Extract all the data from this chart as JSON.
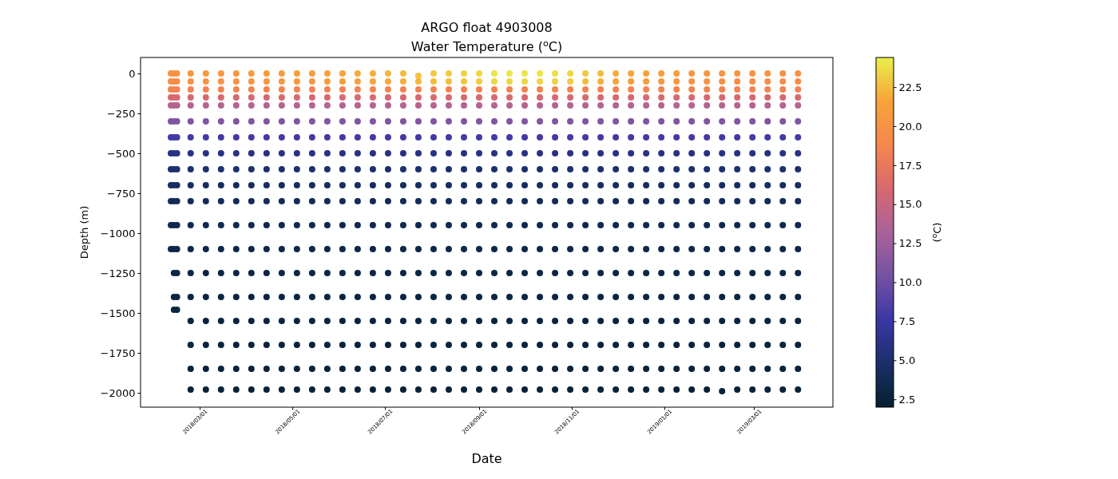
{
  "chart_data": {
    "type": "scatter",
    "title": "ARGO float 4903008",
    "subtitle": "Water Temperature ($^{o}$C)",
    "xlabel": "Date",
    "ylabel": "Depth (m)",
    "clabel": "($^{o}$C)",
    "xlim": [
      "2018-01-21",
      "2019-04-22"
    ],
    "xticks": [
      {
        "value": "2018-03-01",
        "label": "2018/03/01"
      },
      {
        "value": "2018-05-01",
        "label": "2018/05/01"
      },
      {
        "value": "2018-07-01",
        "label": "2018/07/01"
      },
      {
        "value": "2018-09-01",
        "label": "2018/09/01"
      },
      {
        "value": "2018-11-01",
        "label": "2018/11/01"
      },
      {
        "value": "2019-01-01",
        "label": "2019/01/01"
      },
      {
        "value": "2019-03-01",
        "label": "2019/03/01"
      }
    ],
    "ylim": [
      -2090,
      100
    ],
    "yticks": [
      0,
      -250,
      -500,
      -750,
      -1000,
      -1250,
      -1500,
      -1750,
      -2000
    ],
    "clim": [
      2.0,
      24.4
    ],
    "cticks": [
      2.5,
      {
        "value": 5,
        "label": "5.0"
      },
      7.5,
      {
        "value": 10,
        "label": "10.0"
      },
      12.5,
      {
        "value": 15,
        "label": "15.0"
      },
      17.5,
      {
        "value": 20,
        "label": "20.0"
      },
      22.5
    ],
    "x": [
      "2018-02-10",
      "2018-02-10",
      "2018-02-10",
      "2018-02-10",
      "2018-02-10",
      "2018-02-10",
      "2018-02-10",
      "2018-02-10",
      "2018-02-10",
      "2018-02-10",
      "2018-02-10",
      "2018-02-10",
      "2018-02-10",
      "2018-02-12",
      "2018-02-12",
      "2018-02-12",
      "2018-02-12",
      "2018-02-12",
      "2018-02-12",
      "2018-02-12",
      "2018-02-12",
      "2018-02-12",
      "2018-02-12",
      "2018-02-12",
      "2018-02-12",
      "2018-02-12",
      "2018-02-12",
      "2018-02-12",
      "2018-02-12",
      "2018-02-14",
      "2018-02-14",
      "2018-02-14",
      "2018-02-14",
      "2018-02-14",
      "2018-02-14",
      "2018-02-14",
      "2018-02-14",
      "2018-02-14",
      "2018-02-14",
      "2018-02-14",
      "2018-02-14",
      "2018-02-14",
      "2018-02-14",
      "2018-02-14",
      "2018-02-14",
      "2018-02-23",
      "2018-02-23",
      "2018-02-23",
      "2018-02-23",
      "2018-02-23",
      "2018-02-23",
      "2018-02-23",
      "2018-02-23",
      "2018-02-23",
      "2018-02-23",
      "2018-02-23",
      "2018-02-23",
      "2018-02-23",
      "2018-02-23",
      "2018-02-23",
      "2018-02-23",
      "2018-02-23",
      "2018-02-23",
      "2018-02-23",
      "2018-03-05",
      "2018-03-05",
      "2018-03-05",
      "2018-03-05",
      "2018-03-05",
      "2018-03-05",
      "2018-03-05",
      "2018-03-05",
      "2018-03-05",
      "2018-03-05",
      "2018-03-05",
      "2018-03-05",
      "2018-03-05",
      "2018-03-05",
      "2018-03-05",
      "2018-03-05",
      "2018-03-05",
      "2018-03-05",
      "2018-03-05",
      "2018-03-15",
      "2018-03-15",
      "2018-03-15",
      "2018-03-15",
      "2018-03-15",
      "2018-03-15",
      "2018-03-15",
      "2018-03-15",
      "2018-03-15",
      "2018-03-15",
      "2018-03-15",
      "2018-03-15",
      "2018-03-15",
      "2018-03-15",
      "2018-03-15",
      "2018-03-15",
      "2018-03-15",
      "2018-03-15",
      "2018-03-15",
      "2018-03-25",
      "2018-03-25",
      "2018-03-25",
      "2018-03-25",
      "2018-03-25",
      "2018-03-25",
      "2018-03-25",
      "2018-03-25",
      "2018-03-25",
      "2018-03-25",
      "2018-03-25",
      "2018-03-25",
      "2018-03-25",
      "2018-03-25",
      "2018-03-25",
      "2018-03-25",
      "2018-03-25",
      "2018-03-25",
      "2018-03-25",
      "2018-04-04",
      "2018-04-04",
      "2018-04-04",
      "2018-04-04",
      "2018-04-04",
      "2018-04-04",
      "2018-04-04",
      "2018-04-04",
      "2018-04-04",
      "2018-04-04",
      "2018-04-04",
      "2018-04-04",
      "2018-04-04",
      "2018-04-04",
      "2018-04-04",
      "2018-04-04",
      "2018-04-04",
      "2018-04-04",
      "2018-04-04",
      "2018-04-14",
      "2018-04-14",
      "2018-04-14",
      "2018-04-14",
      "2018-04-14",
      "2018-04-14",
      "2018-04-14",
      "2018-04-14",
      "2018-04-14",
      "2018-04-14",
      "2018-04-14",
      "2018-04-14",
      "2018-04-14",
      "2018-04-14",
      "2018-04-14",
      "2018-04-14",
      "2018-04-14",
      "2018-04-14",
      "2018-04-14",
      "2018-04-24",
      "2018-04-24",
      "2018-04-24",
      "2018-04-24",
      "2018-04-24",
      "2018-04-24",
      "2018-04-24",
      "2018-04-24",
      "2018-04-24",
      "2018-04-24",
      "2018-04-24",
      "2018-04-24",
      "2018-04-24",
      "2018-04-24",
      "2018-04-24",
      "2018-04-24",
      "2018-04-24",
      "2018-04-24",
      "2018-04-24",
      "2018-05-04",
      "2018-05-04",
      "2018-05-04",
      "2018-05-04",
      "2018-05-04",
      "2018-05-04",
      "2018-05-04",
      "2018-05-04",
      "2018-05-04",
      "2018-05-04",
      "2018-05-04",
      "2018-05-04",
      "2018-05-04",
      "2018-05-04",
      "2018-05-04",
      "2018-05-04",
      "2018-05-04",
      "2018-05-04",
      "2018-05-04",
      "2018-05-14",
      "2018-05-14",
      "2018-05-14",
      "2018-05-14",
      "2018-05-14",
      "2018-05-14",
      "2018-05-14",
      "2018-05-14",
      "2018-05-14",
      "2018-05-14",
      "2018-05-14",
      "2018-05-14",
      "2018-05-14",
      "2018-05-14",
      "2018-05-14",
      "2018-05-14",
      "2018-05-14",
      "2018-05-14",
      "2018-05-14",
      "2018-05-24",
      "2018-05-24",
      "2018-05-24",
      "2018-05-24",
      "2018-05-24",
      "2018-05-24",
      "2018-05-24",
      "2018-05-24",
      "2018-05-24",
      "2018-05-24",
      "2018-05-24",
      "2018-05-24",
      "2018-05-24",
      "2018-05-24",
      "2018-05-24",
      "2018-05-24",
      "2018-05-24",
      "2018-05-24",
      "2018-05-24",
      "2018-06-03",
      "2018-06-03",
      "2018-06-03",
      "2018-06-03",
      "2018-06-03",
      "2018-06-03",
      "2018-06-03",
      "2018-06-03",
      "2018-06-03",
      "2018-06-03",
      "2018-06-03",
      "2018-06-03",
      "2018-06-03",
      "2018-06-03",
      "2018-06-03",
      "2018-06-03",
      "2018-06-03",
      "2018-06-03",
      "2018-06-03",
      "2018-06-13",
      "2018-06-13",
      "2018-06-13",
      "2018-06-13",
      "2018-06-13",
      "2018-06-13",
      "2018-06-13",
      "2018-06-13",
      "2018-06-13",
      "2018-06-13",
      "2018-06-13",
      "2018-06-13",
      "2018-06-13",
      "2018-06-13",
      "2018-06-13",
      "2018-06-13",
      "2018-06-13",
      "2018-06-13",
      "2018-06-13",
      "2018-06-23",
      "2018-06-23",
      "2018-06-23",
      "2018-06-23",
      "2018-06-23",
      "2018-06-23",
      "2018-06-23",
      "2018-06-23",
      "2018-06-23",
      "2018-06-23",
      "2018-06-23",
      "2018-06-23",
      "2018-06-23",
      "2018-06-23",
      "2018-06-23",
      "2018-06-23",
      "2018-06-23",
      "2018-06-23",
      "2018-06-23",
      "2018-07-03",
      "2018-07-03",
      "2018-07-03",
      "2018-07-03",
      "2018-07-03",
      "2018-07-03",
      "2018-07-03",
      "2018-07-03",
      "2018-07-03",
      "2018-07-03",
      "2018-07-03",
      "2018-07-03",
      "2018-07-03",
      "2018-07-03",
      "2018-07-03",
      "2018-07-03",
      "2018-07-03",
      "2018-07-03",
      "2018-07-03",
      "2018-07-13",
      "2018-07-13",
      "2018-07-13",
      "2018-07-13",
      "2018-07-13",
      "2018-07-13",
      "2018-07-13",
      "2018-07-13",
      "2018-07-13",
      "2018-07-13",
      "2018-07-13",
      "2018-07-13",
      "2018-07-13",
      "2018-07-13",
      "2018-07-13",
      "2018-07-13",
      "2018-07-13",
      "2018-07-13",
      "2018-07-13",
      "2018-07-23",
      "2018-07-23",
      "2018-07-23",
      "2018-07-23",
      "2018-07-23",
      "2018-07-23",
      "2018-07-23",
      "2018-07-23",
      "2018-07-23",
      "2018-07-23",
      "2018-07-23",
      "2018-07-23",
      "2018-07-23",
      "2018-07-23",
      "2018-07-23",
      "2018-07-23",
      "2018-07-23",
      "2018-07-23",
      "2018-07-23",
      "2018-08-02",
      "2018-08-02",
      "2018-08-02",
      "2018-08-02",
      "2018-08-02",
      "2018-08-02",
      "2018-08-02",
      "2018-08-02",
      "2018-08-02",
      "2018-08-02",
      "2018-08-02",
      "2018-08-02",
      "2018-08-02",
      "2018-08-02",
      "2018-08-02",
      "2018-08-02",
      "2018-08-02",
      "2018-08-02",
      "2018-08-02",
      "2018-08-12",
      "2018-08-12",
      "2018-08-12",
      "2018-08-12",
      "2018-08-12",
      "2018-08-12",
      "2018-08-12",
      "2018-08-12",
      "2018-08-12",
      "2018-08-12",
      "2018-08-12",
      "2018-08-12",
      "2018-08-12",
      "2018-08-12",
      "2018-08-12",
      "2018-08-12",
      "2018-08-12",
      "2018-08-12",
      "2018-08-12",
      "2018-08-22",
      "2018-08-22",
      "2018-08-22",
      "2018-08-22",
      "2018-08-22",
      "2018-08-22",
      "2018-08-22",
      "2018-08-22",
      "2018-08-22",
      "2018-08-22",
      "2018-08-22",
      "2018-08-22",
      "2018-08-22",
      "2018-08-22",
      "2018-08-22",
      "2018-08-22",
      "2018-08-22",
      "2018-08-22",
      "2018-08-22",
      "2018-09-01",
      "2018-09-01",
      "2018-09-01",
      "2018-09-01",
      "2018-09-01",
      "2018-09-01",
      "2018-09-01",
      "2018-09-01",
      "2018-09-01",
      "2018-09-01",
      "2018-09-01",
      "2018-09-01",
      "2018-09-01",
      "2018-09-01",
      "2018-09-01",
      "2018-09-01",
      "2018-09-01",
      "2018-09-01",
      "2018-09-01",
      "2018-09-11",
      "2018-09-11",
      "2018-09-11",
      "2018-09-11",
      "2018-09-11",
      "2018-09-11",
      "2018-09-11",
      "2018-09-11",
      "2018-09-11",
      "2018-09-11",
      "2018-09-11",
      "2018-09-11",
      "2018-09-11",
      "2018-09-11",
      "2018-09-11",
      "2018-09-11",
      "2018-09-11",
      "2018-09-11",
      "2018-09-11",
      "2018-09-21",
      "2018-09-21",
      "2018-09-21",
      "2018-09-21",
      "2018-09-21",
      "2018-09-21",
      "2018-09-21",
      "2018-09-21",
      "2018-09-21",
      "2018-09-21",
      "2018-09-21",
      "2018-09-21",
      "2018-09-21",
      "2018-09-21",
      "2018-09-21",
      "2018-09-21",
      "2018-09-21",
      "2018-09-21",
      "2018-09-21",
      "2018-10-01",
      "2018-10-01",
      "2018-10-01",
      "2018-10-01",
      "2018-10-01",
      "2018-10-01",
      "2018-10-01",
      "2018-10-01",
      "2018-10-01",
      "2018-10-01",
      "2018-10-01",
      "2018-10-01",
      "2018-10-01",
      "2018-10-01",
      "2018-10-01",
      "2018-10-01",
      "2018-10-01",
      "2018-10-01",
      "2018-10-01",
      "2018-10-11",
      "2018-10-11",
      "2018-10-11",
      "2018-10-11",
      "2018-10-11",
      "2018-10-11",
      "2018-10-11",
      "2018-10-11",
      "2018-10-11",
      "2018-10-11",
      "2018-10-11",
      "2018-10-11",
      "2018-10-11",
      "2018-10-11",
      "2018-10-11",
      "2018-10-11",
      "2018-10-11",
      "2018-10-11",
      "2018-10-11",
      "2018-10-21",
      "2018-10-21",
      "2018-10-21",
      "2018-10-21",
      "2018-10-21",
      "2018-10-21",
      "2018-10-21",
      "2018-10-21",
      "2018-10-21",
      "2018-10-21",
      "2018-10-21",
      "2018-10-21",
      "2018-10-21",
      "2018-10-21",
      "2018-10-21",
      "2018-10-21",
      "2018-10-21",
      "2018-10-21",
      "2018-10-21",
      "2018-10-31",
      "2018-10-31",
      "2018-10-31",
      "2018-10-31",
      "2018-10-31",
      "2018-10-31",
      "2018-10-31",
      "2018-10-31",
      "2018-10-31",
      "2018-10-31",
      "2018-10-31",
      "2018-10-31",
      "2018-10-31",
      "2018-10-31",
      "2018-10-31",
      "2018-10-31",
      "2018-10-31",
      "2018-10-31",
      "2018-10-31",
      "2018-11-10",
      "2018-11-10",
      "2018-11-10",
      "2018-11-10",
      "2018-11-10",
      "2018-11-10",
      "2018-11-10",
      "2018-11-10",
      "2018-11-10",
      "2018-11-10",
      "2018-11-10",
      "2018-11-10",
      "2018-11-10",
      "2018-11-10",
      "2018-11-10",
      "2018-11-10",
      "2018-11-10",
      "2018-11-10",
      "2018-11-10",
      "2018-11-20",
      "2018-11-20",
      "2018-11-20",
      "2018-11-20",
      "2018-11-20",
      "2018-11-20",
      "2018-11-20",
      "2018-11-20",
      "2018-11-20",
      "2018-11-20",
      "2018-11-20",
      "2018-11-20",
      "2018-11-20",
      "2018-11-20",
      "2018-11-20",
      "2018-11-20",
      "2018-11-20",
      "2018-11-20",
      "2018-11-20",
      "2018-11-30",
      "2018-11-30",
      "2018-11-30",
      "2018-11-30",
      "2018-11-30",
      "2018-11-30",
      "2018-11-30",
      "2018-11-30",
      "2018-11-30",
      "2018-11-30",
      "2018-11-30",
      "2018-11-30",
      "2018-11-30",
      "2018-11-30",
      "2018-11-30",
      "2018-11-30",
      "2018-11-30",
      "2018-11-30",
      "2018-11-30",
      "2018-12-10",
      "2018-12-10",
      "2018-12-10",
      "2018-12-10",
      "2018-12-10",
      "2018-12-10",
      "2018-12-10",
      "2018-12-10",
      "2018-12-10",
      "2018-12-10",
      "2018-12-10",
      "2018-12-10",
      "2018-12-10",
      "2018-12-10",
      "2018-12-10",
      "2018-12-10",
      "2018-12-10",
      "2018-12-10",
      "2018-12-10",
      "2018-12-20",
      "2018-12-20",
      "2018-12-20",
      "2018-12-20",
      "2018-12-20",
      "2018-12-20",
      "2018-12-20",
      "2018-12-20",
      "2018-12-20",
      "2018-12-20",
      "2018-12-20",
      "2018-12-20",
      "2018-12-20",
      "2018-12-20",
      "2018-12-20",
      "2018-12-20",
      "2018-12-20",
      "2018-12-20",
      "2018-12-20",
      "2018-12-30",
      "2018-12-30",
      "2018-12-30",
      "2018-12-30",
      "2018-12-30",
      "2018-12-30",
      "2018-12-30",
      "2018-12-30",
      "2018-12-30",
      "2018-12-30",
      "2018-12-30",
      "2018-12-30",
      "2018-12-30",
      "2018-12-30",
      "2018-12-30",
      "2018-12-30",
      "2018-12-30",
      "2018-12-30",
      "2018-12-30",
      "2019-01-09",
      "2019-01-09",
      "2019-01-09",
      "2019-01-09",
      "2019-01-09",
      "2019-01-09",
      "2019-01-09",
      "2019-01-09",
      "2019-01-09",
      "2019-01-09",
      "2019-01-09",
      "2019-01-09",
      "2019-01-09",
      "2019-01-09",
      "2019-01-09",
      "2019-01-09",
      "2019-01-09",
      "2019-01-09",
      "2019-01-09",
      "2019-01-19",
      "2019-01-19",
      "2019-01-19",
      "2019-01-19",
      "2019-01-19",
      "2019-01-19",
      "2019-01-19",
      "2019-01-19",
      "2019-01-19",
      "2019-01-19",
      "2019-01-19",
      "2019-01-19",
      "2019-01-19",
      "2019-01-19",
      "2019-01-19",
      "2019-01-19",
      "2019-01-19",
      "2019-01-19",
      "2019-01-19",
      "2019-01-29",
      "2019-01-29",
      "2019-01-29",
      "2019-01-29",
      "2019-01-29",
      "2019-01-29",
      "2019-01-29",
      "2019-01-29",
      "2019-01-29",
      "2019-01-29",
      "2019-01-29",
      "2019-01-29",
      "2019-01-29",
      "2019-01-29",
      "2019-01-29",
      "2019-01-29",
      "2019-01-29",
      "2019-01-29",
      "2019-01-29",
      "2019-02-08",
      "2019-02-08",
      "2019-02-08",
      "2019-02-08",
      "2019-02-08",
      "2019-02-08",
      "2019-02-08",
      "2019-02-08",
      "2019-02-08",
      "2019-02-08",
      "2019-02-08",
      "2019-02-08",
      "2019-02-08",
      "2019-02-08",
      "2019-02-08",
      "2019-02-08",
      "2019-02-08",
      "2019-02-08",
      "2019-02-08",
      "2019-02-18",
      "2019-02-18",
      "2019-02-18",
      "2019-02-18",
      "2019-02-18",
      "2019-02-18",
      "2019-02-18",
      "2019-02-18",
      "2019-02-18",
      "2019-02-18",
      "2019-02-18",
      "2019-02-18",
      "2019-02-18",
      "2019-02-18",
      "2019-02-18",
      "2019-02-18",
      "2019-02-18",
      "2019-02-18",
      "2019-02-18",
      "2019-02-28",
      "2019-02-28",
      "2019-02-28",
      "2019-02-28",
      "2019-02-28",
      "2019-02-28",
      "2019-02-28",
      "2019-02-28",
      "2019-02-28",
      "2019-02-28",
      "2019-02-28",
      "2019-02-28",
      "2019-02-28",
      "2019-02-28",
      "2019-02-28",
      "2019-02-28",
      "2019-02-28",
      "2019-02-28",
      "2019-02-28",
      "2019-03-10",
      "2019-03-10",
      "2019-03-10",
      "2019-03-10",
      "2019-03-10",
      "2019-03-10",
      "2019-03-10",
      "2019-03-10",
      "2019-03-10",
      "2019-03-10",
      "2019-03-10",
      "2019-03-10",
      "2019-03-10",
      "2019-03-10",
      "2019-03-10",
      "2019-03-10",
      "2019-03-10",
      "2019-03-10",
      "2019-03-10",
      "2019-03-20",
      "2019-03-20",
      "2019-03-20",
      "2019-03-20",
      "2019-03-20",
      "2019-03-20",
      "2019-03-20",
      "2019-03-20",
      "2019-03-20",
      "2019-03-20",
      "2019-03-20",
      "2019-03-20",
      "2019-03-20",
      "2019-03-20",
      "2019-03-20",
      "2019-03-20",
      "2019-03-20",
      "2019-03-20",
      "2019-03-20",
      "2019-03-30",
      "2019-03-30",
      "2019-03-30",
      "2019-03-30",
      "2019-03-30",
      "2019-03-30",
      "2019-03-30",
      "2019-03-30",
      "2019-03-30",
      "2019-03-30",
      "2019-03-30",
      "2019-03-30",
      "2019-03-30",
      "2019-03-30",
      "2019-03-30",
      "2019-03-30",
      "2019-03-30",
      "2019-03-30",
      "2019-03-30"
    ],
    "values": [
      0,
      -50,
      -100,
      -150,
      -200,
      -300,
      -400,
      -500,
      -600,
      -700,
      -800,
      -950,
      -1100,
      0,
      -50,
      -100,
      -150,
      -200,
      -300,
      -400,
      -500,
      -600,
      -700,
      -800,
      -950,
      -1100,
      -1250,
      -1400,
      -1480,
      0,
      -50,
      -100,
      -150,
      -200,
      -300,
      -400,
      -500,
      -600,
      -700,
      -800,
      -950,
      -1100,
      -1250,
      -1400,
      -1480,
      0,
      -50,
      -100,
      -150,
      -200,
      -300,
      -400,
      -500,
      -600,
      -700,
      -800,
      -950,
      -1100,
      -1250,
      -1400,
      -1550,
      -1700,
      -1850,
      -1980,
      0,
      -50,
      -100,
      -150,
      -200,
      -300,
      -400,
      -500,
      -600,
      -700,
      -800,
      -950,
      -1100,
      -1250,
      -1400,
      -1550,
      -1700,
      -1850,
      -1980,
      0,
      -50,
      -100,
      -150,
      -200,
      -300,
      -400,
      -500,
      -600,
      -700,
      -800,
      -950,
      -1100,
      -1250,
      -1400,
      -1550,
      -1700,
      -1850,
      -1980,
      0,
      -50,
      -100,
      -150,
      -200,
      -300,
      -400,
      -500,
      -600,
      -700,
      -800,
      -950,
      -1100,
      -1250,
      -1400,
      -1550,
      -1700,
      -1850,
      -1980,
      0,
      -50,
      -100,
      -150,
      -200,
      -300,
      -400,
      -500,
      -600,
      -700,
      -800,
      -950,
      -1100,
      -1250,
      -1400,
      -1550,
      -1700,
      -1850,
      -1980,
      0,
      -50,
      -100,
      -150,
      -200,
      -300,
      -400,
      -500,
      -600,
      -700,
      -800,
      -950,
      -1100,
      -1250,
      -1400,
      -1550,
      -1700,
      -1850,
      -1980,
      0,
      -50,
      -100,
      -150,
      -200,
      -300,
      -400,
      -500,
      -600,
      -700,
      -800,
      -950,
      -1100,
      -1250,
      -1400,
      -1550,
      -1700,
      -1850,
      -1980,
      0,
      -50,
      -100,
      -150,
      -200,
      -300,
      -400,
      -500,
      -600,
      -700,
      -800,
      -950,
      -1100,
      -1250,
      -1400,
      -1550,
      -1700,
      -1850,
      -1980,
      0,
      -50,
      -100,
      -150,
      -200,
      -300,
      -400,
      -500,
      -600,
      -700,
      -800,
      -950,
      -1100,
      -1250,
      -1400,
      -1550,
      -1700,
      -1850,
      -1980,
      0,
      -50,
      -100,
      -150,
      -200,
      -300,
      -400,
      -500,
      -600,
      -700,
      -800,
      -950,
      -1100,
      -1250,
      -1400,
      -1550,
      -1700,
      -1850,
      -1980,
      0,
      -50,
      -100,
      -150,
      -200,
      -300,
      -400,
      -500,
      -600,
      -700,
      -800,
      -950,
      -1100,
      -1250,
      -1400,
      -1550,
      -1700,
      -1850,
      -1980,
      0,
      -50,
      -100,
      -150,
      -200,
      -300,
      -400,
      -500,
      -600,
      -700,
      -800,
      -950,
      -1100,
      -1250,
      -1400,
      -1550,
      -1700,
      -1850,
      -1980,
      0,
      -50,
      -100,
      -150,
      -200,
      -300,
      -400,
      -500,
      -600,
      -700,
      -800,
      -950,
      -1100,
      -1250,
      -1400,
      -1550,
      -1700,
      -1850,
      -1980,
      0,
      -50,
      -100,
      -150,
      -200,
      -300,
      -400,
      -500,
      -600,
      -700,
      -800,
      -950,
      -1100,
      -1250,
      -1400,
      -1550,
      -1700,
      -1850,
      -1980,
      0,
      -50,
      -100,
      -150,
      -200,
      -300,
      -400,
      -500,
      -600,
      -700,
      -800,
      -950,
      -1100,
      -1250,
      -1400,
      -1550,
      -1700,
      -1850,
      -1980,
      -15,
      -50,
      -100,
      -150,
      -200,
      -300,
      -400,
      -500,
      -600,
      -700,
      -800,
      -950,
      -1100,
      -1250,
      -1400,
      -1550,
      -1700,
      -1850,
      -1980,
      0,
      -50,
      -100,
      -150,
      -200,
      -300,
      -400,
      -500,
      -600,
      -700,
      -800,
      -950,
      -1100,
      -1250,
      -1400,
      -1550,
      -1700,
      -1850,
      -1980,
      0,
      -50,
      -100,
      -150,
      -200,
      -300,
      -400,
      -500,
      -600,
      -700,
      -800,
      -950,
      -1100,
      -1250,
      -1400,
      -1550,
      -1700,
      -1850,
      -1980,
      0,
      -50,
      -100,
      -150,
      -200,
      -300,
      -400,
      -500,
      -600,
      -700,
      -800,
      -950,
      -1100,
      -1250,
      -1400,
      -1550,
      -1700,
      -1850,
      -1980,
      0,
      -50,
      -100,
      -150,
      -200,
      -300,
      -400,
      -500,
      -600,
      -700,
      -800,
      -950,
      -1100,
      -1250,
      -1400,
      -1550,
      -1700,
      -1850,
      -1980,
      0,
      -50,
      -100,
      -150,
      -200,
      -300,
      -400,
      -500,
      -600,
      -700,
      -800,
      -950,
      -1100,
      -1250,
      -1400,
      -1550,
      -1700,
      -1850,
      -1980,
      0,
      -50,
      -100,
      -150,
      -200,
      -300,
      -400,
      -500,
      -600,
      -700,
      -800,
      -950,
      -1100,
      -1250,
      -1400,
      -1550,
      -1700,
      -1850,
      -1980,
      0,
      -50,
      -100,
      -150,
      -200,
      -300,
      -400,
      -500,
      -600,
      -700,
      -800,
      -950,
      -1100,
      -1250,
      -1400,
      -1550,
      -1700,
      -1850,
      -1980,
      0,
      -50,
      -100,
      -150,
      -200,
      -300,
      -400,
      -500,
      -600,
      -700,
      -800,
      -950,
      -1100,
      -1250,
      -1400,
      -1550,
      -1700,
      -1850,
      -1980,
      0,
      -50,
      -100,
      -150,
      -200,
      -300,
      -400,
      -500,
      -600,
      -700,
      -800,
      -950,
      -1100,
      -1250,
      -1400,
      -1550,
      -1700,
      -1850,
      -1980,
      0,
      -50,
      -100,
      -150,
      -200,
      -300,
      -400,
      -500,
      -600,
      -700,
      -800,
      -950,
      -1100,
      -1250,
      -1400,
      -1550,
      -1700,
      -1850,
      -1980,
      0,
      -50,
      -100,
      -150,
      -200,
      -300,
      -400,
      -500,
      -600,
      -700,
      -800,
      -950,
      -1100,
      -1250,
      -1400,
      -1550,
      -1700,
      -1850,
      -1980,
      0,
      -50,
      -100,
      -150,
      -200,
      -300,
      -400,
      -500,
      -600,
      -700,
      -800,
      -950,
      -1100,
      -1250,
      -1400,
      -1550,
      -1700,
      -1850,
      -1980,
      0,
      -50,
      -100,
      -150,
      -200,
      -300,
      -400,
      -500,
      -600,
      -700,
      -800,
      -950,
      -1100,
      -1250,
      -1400,
      -1550,
      -1700,
      -1850,
      -1980,
      0,
      -50,
      -100,
      -150,
      -200,
      -300,
      -400,
      -500,
      -600,
      -700,
      -800,
      -950,
      -1100,
      -1250,
      -1400,
      -1550,
      -1700,
      -1850,
      -1980,
      0,
      -50,
      -100,
      -150,
      -200,
      -300,
      -400,
      -500,
      -600,
      -700,
      -800,
      -950,
      -1100,
      -1250,
      -1400,
      -1550,
      -1700,
      -1850,
      -1980,
      0,
      -50,
      -100,
      -150,
      -200,
      -300,
      -400,
      -500,
      -600,
      -700,
      -800,
      -950,
      -1100,
      -1250,
      -1400,
      -1550,
      -1700,
      -1850,
      -1980,
      0,
      -50,
      -100,
      -150,
      -200,
      -300,
      -400,
      -500,
      -600,
      -700,
      -800,
      -950,
      -1100,
      -1250,
      -1400,
      -1550,
      -1700,
      -1850,
      -1980,
      0,
      -50,
      -100,
      -150,
      -200,
      -300,
      -400,
      -500,
      -600,
      -700,
      -800,
      -950,
      -1100,
      -1250,
      -1400,
      -1550,
      -1700,
      -1850,
      -1980,
      0,
      -50,
      -100,
      -150,
      -200,
      -300,
      -400,
      -500,
      -600,
      -700,
      -800,
      -950,
      -1100,
      -1250,
      -1400,
      -1550,
      -1700,
      -1850,
      -1980,
      0,
      -50,
      -100,
      -150,
      -200,
      -300,
      -400,
      -500,
      -600,
      -700,
      -800,
      -950,
      -1100,
      -1250,
      -1400,
      -1550,
      -1700,
      -1850,
      -1990,
      0,
      -50,
      -100,
      -150,
      -200,
      -300,
      -400,
      -500,
      -600,
      -700,
      -800,
      -950,
      -1100,
      -1250,
      -1400,
      -1550,
      -1700,
      -1850,
      -1980,
      0,
      -50,
      -100,
      -150,
      -200,
      -300,
      -400,
      -500,
      -600,
      -700,
      -800,
      -950,
      -1100,
      -1250,
      -1400,
      -1550,
      -1700,
      -1850,
      -1980,
      0,
      -50,
      -100,
      -150,
      -200,
      -300,
      -400,
      -500,
      -600,
      -700,
      -800,
      -950,
      -1100,
      -1250,
      -1400,
      -1550,
      -1700,
      -1850,
      -1980,
      0,
      -50,
      -100,
      -150,
      -200,
      -300,
      -400,
      -500,
      -600,
      -700,
      -800,
      -950,
      -1100,
      -1250,
      -1400,
      -1550,
      -1700,
      -1850,
      -1980,
      0,
      -50,
      -100,
      -150,
      -200,
      -300,
      -400,
      -500,
      -600,
      -700,
      -800,
      -950,
      -1100,
      -1250,
      -1400,
      -1550,
      -1700,
      -1850,
      -1980
    ],
    "cvalues": [
      20,
      19.5,
      18.5,
      16,
      14,
      11,
      8,
      6,
      5,
      4.4,
      4,
      3.6,
      3.3,
      20,
      19.5,
      18.5,
      16,
      14,
      11,
      8,
      6,
      5,
      4.4,
      4,
      3.6,
      3.3,
      3.1,
      2.9,
      2.9,
      20,
      19.5,
      18.5,
      16,
      14,
      11,
      8,
      6,
      5,
      4.4,
      4,
      3.6,
      3.3,
      3.1,
      2.9,
      2.9,
      20.5,
      20,
      18.5,
      16,
      14,
      11,
      8,
      6,
      5,
      4.4,
      4,
      3.6,
      3.3,
      3.1,
      2.9,
      2.8,
      2.7,
      2.6,
      2.5,
      20.5,
      20,
      18.5,
      16,
      14,
      11,
      8,
      6,
      5,
      4.4,
      4,
      3.6,
      3.3,
      3.1,
      2.9,
      2.8,
      2.7,
      2.6,
      2.5,
      20.5,
      20,
      18.5,
      16,
      14,
      11,
      8,
      6,
      5,
      4.4,
      4,
      3.6,
      3.3,
      3.1,
      2.9,
      2.8,
      2.7,
      2.6,
      2.5,
      20.5,
      20,
      18.5,
      16,
      14,
      11,
      8,
      6,
      5,
      4.4,
      4,
      3.6,
      3.3,
      3.1,
      2.9,
      2.8,
      2.7,
      2.6,
      2.5,
      20.8,
      20.3,
      18.5,
      16,
      14,
      11,
      8,
      6,
      5,
      4.4,
      4,
      3.6,
      3.3,
      3.1,
      2.9,
      2.8,
      2.7,
      2.6,
      2.5,
      20.8,
      20.3,
      18.5,
      16,
      14,
      11,
      8,
      6,
      5,
      4.4,
      4,
      3.6,
      3.3,
      3.1,
      2.9,
      2.8,
      2.7,
      2.6,
      2.5,
      21,
      20.5,
      18.5,
      16,
      14,
      11,
      8,
      6,
      5,
      4.4,
      4,
      3.6,
      3.3,
      3.1,
      2.9,
      2.8,
      2.7,
      2.6,
      2.5,
      21,
      20.5,
      18.5,
      16,
      14,
      11,
      8,
      6,
      5,
      4.4,
      4,
      3.6,
      3.3,
      3.1,
      2.9,
      2.8,
      2.7,
      2.6,
      2.5,
      21,
      20.5,
      18.5,
      16,
      14,
      11,
      8,
      6,
      5,
      4.4,
      4,
      3.6,
      3.3,
      3.1,
      2.9,
      2.8,
      2.7,
      2.6,
      2.5,
      21.3,
      20.8,
      18.5,
      16,
      14,
      11,
      8,
      6,
      5,
      4.4,
      4,
      3.6,
      3.3,
      3.1,
      2.9,
      2.8,
      2.7,
      2.6,
      2.5,
      21.5,
      21,
      18.5,
      16,
      14,
      11,
      8,
      6,
      5,
      4.4,
      4,
      3.6,
      3.3,
      3.1,
      2.9,
      2.8,
      2.7,
      2.6,
      2.5,
      21.8,
      21.3,
      18.5,
      16,
      14,
      11,
      8,
      6,
      5,
      4.4,
      4,
      3.6,
      3.3,
      3.1,
      2.9,
      2.8,
      2.7,
      2.6,
      2.5,
      22,
      21.5,
      18.5,
      16,
      14,
      11,
      8,
      6,
      5,
      4.4,
      4,
      3.6,
      3.3,
      3.1,
      2.9,
      2.8,
      2.7,
      2.6,
      2.5,
      22.3,
      21.8,
      18.5,
      16,
      14,
      11,
      8,
      6,
      5,
      4.4,
      4,
      3.6,
      3.3,
      3.1,
      2.9,
      2.8,
      2.7,
      2.6,
      2.5,
      22.5,
      22,
      18.5,
      16,
      14,
      11,
      8,
      6,
      5,
      4.4,
      4,
      3.6,
      3.3,
      3.1,
      2.9,
      2.8,
      2.7,
      2.6,
      2.5,
      22.8,
      22.3,
      18.5,
      16,
      14,
      11,
      8,
      6,
      5,
      4.4,
      4,
      3.6,
      3.3,
      3.1,
      2.9,
      2.8,
      2.7,
      2.6,
      2.5,
      23,
      22.5,
      18.5,
      16,
      14,
      11,
      8,
      6,
      5,
      4.4,
      4,
      3.6,
      3.3,
      3.1,
      2.9,
      2.8,
      2.7,
      2.6,
      2.5,
      23,
      22.5,
      18.5,
      16,
      14,
      11,
      8,
      6,
      5,
      4.4,
      4,
      3.6,
      3.3,
      3.1,
      2.9,
      2.8,
      2.7,
      2.6,
      2.5,
      23.3,
      22.8,
      18.5,
      16,
      14,
      11,
      8,
      6,
      5,
      4.4,
      4,
      3.6,
      3.3,
      3.1,
      2.9,
      2.8,
      2.7,
      2.6,
      2.5,
      23.5,
      23,
      18.5,
      16,
      14,
      11,
      8,
      6,
      5,
      4.4,
      4,
      3.6,
      3.3,
      3.1,
      2.9,
      2.8,
      2.7,
      2.6,
      2.5,
      24,
      23.5,
      18.5,
      16,
      14,
      11,
      8,
      6,
      5,
      4.4,
      4,
      3.6,
      3.3,
      3.1,
      2.9,
      2.8,
      2.7,
      2.6,
      2.5,
      24,
      23.5,
      18.5,
      16,
      14,
      11,
      8,
      6,
      5,
      4.4,
      4,
      3.6,
      3.3,
      3.1,
      2.9,
      2.8,
      2.7,
      2.6,
      2.5,
      24,
      23.5,
      18.5,
      16,
      14,
      11,
      8,
      6,
      5,
      4.4,
      4,
      3.6,
      3.3,
      3.1,
      2.9,
      2.8,
      2.7,
      2.6,
      2.5,
      24,
      23.5,
      18.5,
      16,
      14,
      11,
      8,
      6,
      5,
      4.4,
      4,
      3.6,
      3.3,
      3.1,
      2.9,
      2.8,
      2.7,
      2.6,
      2.5,
      23.8,
      23.3,
      18.5,
      16,
      14,
      11,
      8,
      6,
      5,
      4.4,
      4,
      3.6,
      3.3,
      3.1,
      2.9,
      2.8,
      2.7,
      2.6,
      2.5,
      23.5,
      23,
      18.5,
      16,
      14,
      11,
      8,
      6,
      5,
      4.4,
      4,
      3.6,
      3.3,
      3.1,
      2.9,
      2.8,
      2.7,
      2.6,
      2.5,
      23,
      22.5,
      18.5,
      16,
      14,
      11,
      8,
      6,
      5,
      4.4,
      4,
      3.6,
      3.3,
      3.1,
      2.9,
      2.8,
      2.7,
      2.6,
      2.5,
      22.5,
      22,
      18.5,
      16,
      14,
      11,
      8,
      6,
      5,
      4.4,
      4,
      3.6,
      3.3,
      3.1,
      2.9,
      2.8,
      2.7,
      2.6,
      2.5,
      22,
      21.5,
      18.5,
      16,
      14,
      11,
      8,
      6,
      5,
      4.4,
      4,
      3.6,
      3.3,
      3.1,
      2.9,
      2.8,
      2.7,
      2.6,
      2.5,
      21.5,
      21,
      18.5,
      16,
      14,
      11,
      8,
      6,
      5,
      4.4,
      4,
      3.6,
      3.3,
      3.1,
      2.9,
      2.8,
      2.7,
      2.6,
      2.5,
      21.5,
      21,
      18.5,
      16,
      14,
      11,
      8,
      6,
      5,
      4.4,
      4,
      3.6,
      3.3,
      3.1,
      2.9,
      2.8,
      2.7,
      2.6,
      2.5,
      21,
      20.5,
      18.5,
      16,
      14,
      11,
      8,
      6,
      5,
      4.4,
      4,
      3.6,
      3.3,
      3.1,
      2.9,
      2.8,
      2.7,
      2.6,
      2.5,
      21,
      20.5,
      18.5,
      16,
      14,
      11,
      8,
      6,
      5,
      4.4,
      4,
      3.6,
      3.3,
      3.1,
      2.9,
      2.8,
      2.7,
      2.6,
      2.5,
      20.5,
      20,
      18.5,
      16,
      14,
      11,
      8,
      6,
      5,
      4.4,
      4,
      3.6,
      3.3,
      3.1,
      2.9,
      2.8,
      2.7,
      2.6,
      2.5,
      20.5,
      20,
      18.5,
      16,
      14,
      11,
      8,
      6,
      5,
      4.4,
      4,
      3.6,
      3.3,
      3.1,
      2.9,
      2.8,
      2.7,
      2.6,
      2.5,
      20.3,
      19.8,
      18.5,
      16,
      14,
      11,
      8,
      6,
      5,
      4.4,
      4,
      3.6,
      3.3,
      3.1,
      2.9,
      2.8,
      2.7,
      2.6,
      2.5,
      20,
      19.5,
      18.5,
      16,
      14,
      11,
      8,
      6,
      5,
      4.4,
      4,
      3.6,
      3.3,
      3.1,
      2.9,
      2.8,
      2.7,
      2.6,
      2.5,
      20,
      19.5,
      18.5,
      16,
      14,
      11,
      8,
      6,
      5,
      4.4,
      4,
      3.6,
      3.3,
      3.1,
      2.9,
      2.8,
      2.7,
      2.6,
      2.5,
      20,
      19.5,
      18.5,
      16,
      14,
      11,
      8,
      6,
      5,
      4.4,
      4,
      3.6,
      3.3,
      3.1,
      2.9,
      2.8,
      2.7,
      2.6,
      2.5,
      20,
      19.5,
      18.5,
      16,
      14,
      11,
      8,
      6,
      5,
      4.4,
      4,
      3.6,
      3.3,
      3.1,
      2.9,
      2.8,
      2.7,
      2.6,
      2.5,
      20,
      19.5,
      18.5,
      16,
      14,
      11,
      8,
      6,
      5,
      4.4,
      4,
      3.6,
      3.3,
      3.1,
      2.9,
      2.8,
      2.7,
      2.6,
      2.5
    ]
  }
}
